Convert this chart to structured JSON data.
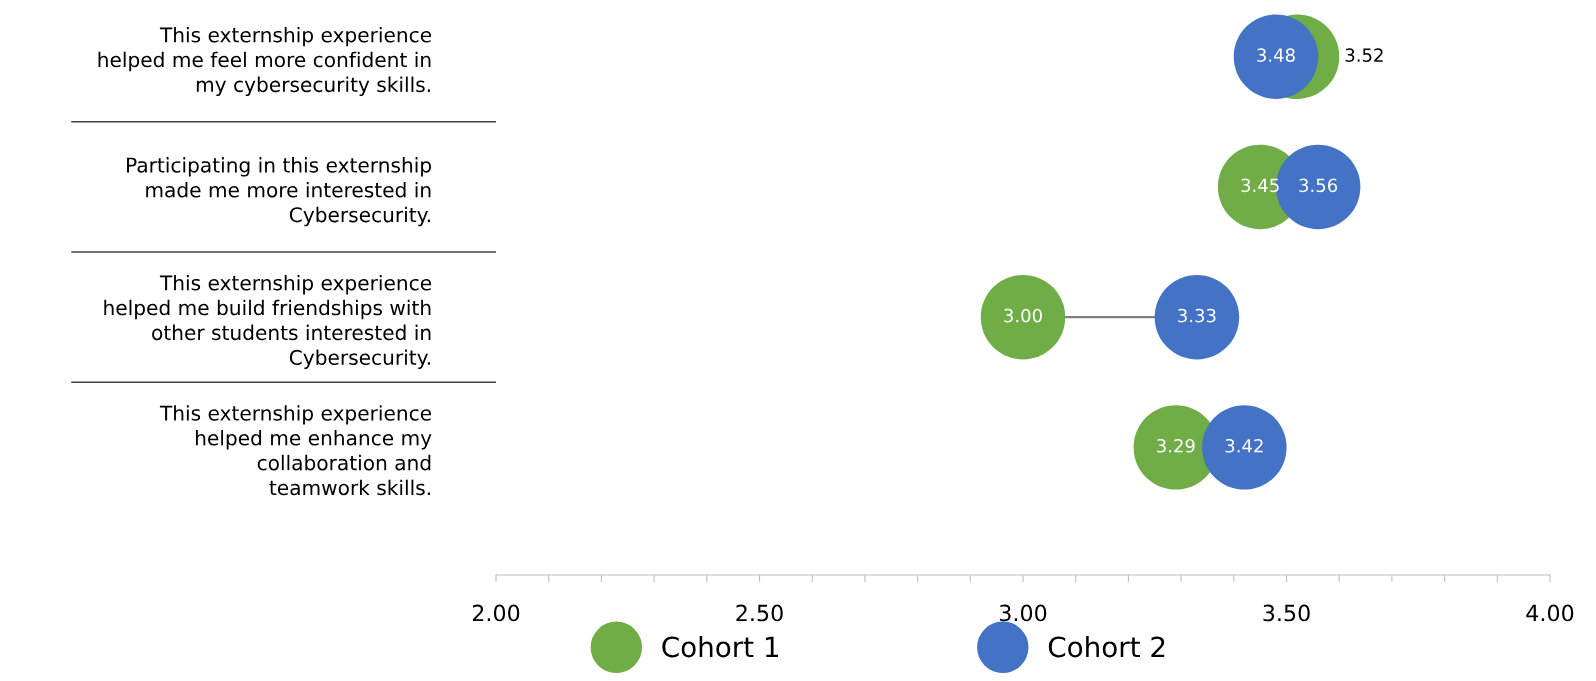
{
  "chart_data": {
    "type": "scatter",
    "orientation": "horizontal",
    "categories": [
      "This externship experience\nhelped me feel more confident in\nmy cybersecurity skills.",
      "Participating in this externship\nmade me more interested in\nCybersecurity.",
      "This externship experience\nhelped me build friendships with\nother students interested in\nCybersecurity.",
      "This externship experience\nhelped me enhance my\ncollaboration and\nteamwork skills."
    ],
    "series": [
      {
        "name": "Cohort 1",
        "color": "#70ad47",
        "values": [
          3.52,
          3.45,
          3.0,
          3.29
        ],
        "value_labels": [
          "3.52",
          "3.45",
          "3.00",
          "3.29"
        ]
      },
      {
        "name": "Cohort 2",
        "color": "#4472c4",
        "values": [
          3.48,
          3.56,
          3.33,
          3.42
        ],
        "value_labels": [
          "3.48",
          "3.56",
          "3.33",
          "3.42"
        ]
      }
    ],
    "xlim": [
      2,
      4
    ],
    "xticks": [
      {
        "value": 2,
        "label": "2.00"
      },
      {
        "value": 2.1,
        "label": null
      },
      {
        "value": 2.2,
        "label": null
      },
      {
        "value": 2.3,
        "label": null
      },
      {
        "value": 2.4,
        "label": null
      },
      {
        "value": 2.5,
        "label": "2.50"
      },
      {
        "value": 2.6,
        "label": null
      },
      {
        "value": 2.7,
        "label": null
      },
      {
        "value": 2.8,
        "label": null
      },
      {
        "value": 2.9,
        "label": null
      },
      {
        "value": 3,
        "label": "3.00"
      },
      {
        "value": 3.1,
        "label": null
      },
      {
        "value": 3.2,
        "label": null
      },
      {
        "value": 3.3,
        "label": null
      },
      {
        "value": 3.4,
        "label": null
      },
      {
        "value": 3.5,
        "label": "3.50"
      },
      {
        "value": 3.6,
        "label": null
      },
      {
        "value": 3.7,
        "label": null
      },
      {
        "value": 3.8,
        "label": null
      },
      {
        "value": 3.9,
        "label": null
      },
      {
        "value": 4,
        "label": "4.00"
      }
    ],
    "marker": "circle",
    "legend": "bottom",
    "grid": false
  }
}
